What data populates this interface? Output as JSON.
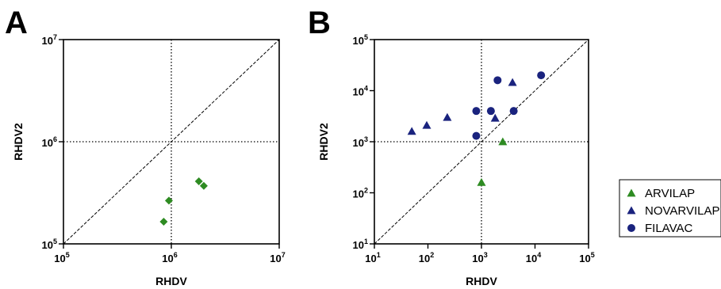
{
  "colors": {
    "green": "#2e8b22",
    "navy": "#1a237e",
    "axis": "#000000"
  },
  "chart_data": [
    {
      "panel": "A",
      "type": "scatter",
      "xlabel": "RHDV",
      "ylabel": "RHDV2",
      "xscale": "log",
      "yscale": "log",
      "xlim": [
        100000,
        10000000
      ],
      "ylim": [
        100000,
        10000000
      ],
      "x_ticks": [
        {
          "base": "10",
          "exp": "5"
        },
        {
          "base": "10",
          "exp": "6"
        },
        {
          "base": "10",
          "exp": "7"
        }
      ],
      "y_ticks": [
        {
          "base": "10",
          "exp": "5"
        },
        {
          "base": "10",
          "exp": "6"
        },
        {
          "base": "10",
          "exp": "7"
        }
      ],
      "reference_lines": {
        "identity_diagonal": true,
        "dotted_x": 1000000,
        "dotted_y": 1000000
      },
      "series": [
        {
          "marker": "diamond",
          "color": "#2e8b22",
          "points": [
            {
              "x": 850000,
              "y": 165000
            },
            {
              "x": 950000,
              "y": 265000
            },
            {
              "x": 1800000,
              "y": 410000
            },
            {
              "x": 2000000,
              "y": 370000
            }
          ]
        }
      ]
    },
    {
      "panel": "B",
      "type": "scatter",
      "xlabel": "RHDV",
      "ylabel": "RHDV2",
      "xscale": "log",
      "yscale": "log",
      "xlim": [
        10,
        100000
      ],
      "ylim": [
        10,
        100000
      ],
      "x_ticks": [
        {
          "base": "10",
          "exp": "1"
        },
        {
          "base": "10",
          "exp": "2"
        },
        {
          "base": "10",
          "exp": "3"
        },
        {
          "base": "10",
          "exp": "4"
        },
        {
          "base": "10",
          "exp": "5"
        }
      ],
      "y_ticks": [
        {
          "base": "10",
          "exp": "1"
        },
        {
          "base": "10",
          "exp": "2"
        },
        {
          "base": "10",
          "exp": "3"
        },
        {
          "base": "10",
          "exp": "4"
        },
        {
          "base": "10",
          "exp": "5"
        }
      ],
      "reference_lines": {
        "identity_diagonal": true,
        "dotted_x": 1000,
        "dotted_y": 1000
      },
      "legend": [
        {
          "label": "ARVILAP",
          "marker": "triangle",
          "color": "#2e8b22"
        },
        {
          "label": "NOVARVILAP",
          "marker": "triangle",
          "color": "#1a237e"
        },
        {
          "label": "FILAVAC",
          "marker": "circle",
          "color": "#1a237e"
        }
      ],
      "series": [
        {
          "name": "ARVILAP",
          "marker": "triangle",
          "color": "#2e8b22",
          "points": [
            {
              "x": 1000,
              "y": 160
            },
            {
              "x": 2500,
              "y": 1000
            }
          ]
        },
        {
          "name": "NOVARVILAP",
          "marker": "triangle",
          "color": "#1a237e",
          "points": [
            {
              "x": 50,
              "y": 1600
            },
            {
              "x": 95,
              "y": 2100
            },
            {
              "x": 230,
              "y": 3000
            },
            {
              "x": 1800,
              "y": 2900
            },
            {
              "x": 3800,
              "y": 14500
            }
          ]
        },
        {
          "name": "FILAVAC",
          "marker": "circle",
          "color": "#1a237e",
          "points": [
            {
              "x": 800,
              "y": 1300
            },
            {
              "x": 800,
              "y": 4000
            },
            {
              "x": 1500,
              "y": 4000
            },
            {
              "x": 2000,
              "y": 16000
            },
            {
              "x": 4000,
              "y": 4000
            },
            {
              "x": 13000,
              "y": 20000
            }
          ]
        }
      ]
    }
  ],
  "panels": {
    "a": {
      "letter": "A"
    },
    "b": {
      "letter": "B"
    }
  }
}
